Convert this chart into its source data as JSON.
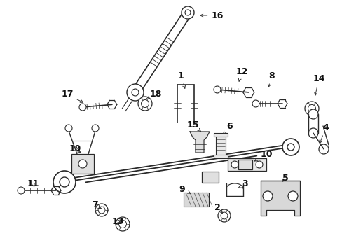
{
  "background_color": "#ffffff",
  "line_color": "#2a2a2a",
  "label_fontsize": 9,
  "label_color": "#111111",
  "fig_w": 4.89,
  "fig_h": 3.6,
  "dpi": 100
}
